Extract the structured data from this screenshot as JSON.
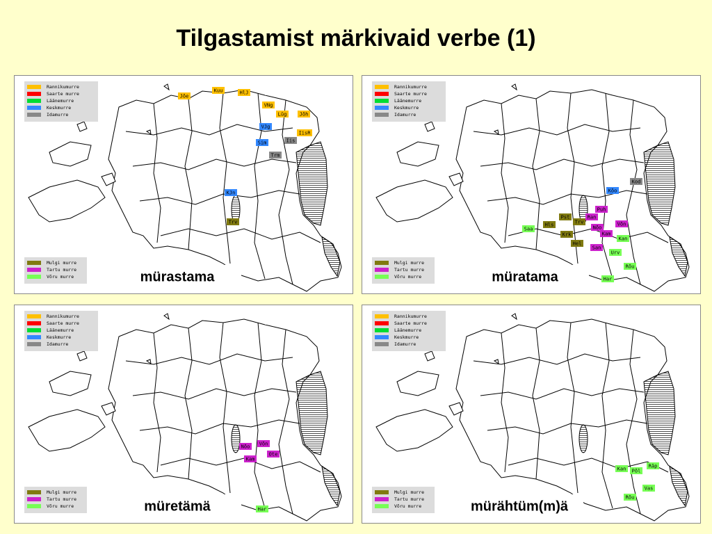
{
  "title": "Tilgastamist märkivaid verbe (1)",
  "legend_top": [
    {
      "name": "Rannikumurre",
      "color": "#ffc000"
    },
    {
      "name": "Saarte murre",
      "color": "#ff0000"
    },
    {
      "name": "Läänemurre",
      "color": "#00dd33"
    },
    {
      "name": "Keskmurre",
      "color": "#3388ff"
    },
    {
      "name": "Idamurre",
      "color": "#888888"
    }
  ],
  "legend_bottom": [
    {
      "name": "Mulgi murre",
      "color": "#807a10"
    },
    {
      "name": "Tartu murre",
      "color": "#cc22cc"
    },
    {
      "name": "Võru murre",
      "color": "#77ff55"
    }
  ],
  "maps": [
    {
      "word": "mürastama",
      "labels": [
        {
          "text": "Jõe",
          "color": "#ffc000"
        },
        {
          "text": "Kuu",
          "color": "#ffc000"
        },
        {
          "text": "HlJ",
          "color": "#ffc000"
        },
        {
          "text": "VNg",
          "color": "#ffc000"
        },
        {
          "text": "Lüg",
          "color": "#ffc000"
        },
        {
          "text": "Jõh",
          "color": "#ffc000"
        },
        {
          "text": "IisR",
          "color": "#ffc000"
        },
        {
          "text": "VJg",
          "color": "#3388ff"
        },
        {
          "text": "Sim",
          "color": "#3388ff"
        },
        {
          "text": "Iis",
          "color": "#888888"
        },
        {
          "text": "Trm",
          "color": "#888888"
        },
        {
          "text": "KJn",
          "color": "#3388ff"
        },
        {
          "text": "Trv",
          "color": "#807a10"
        }
      ]
    },
    {
      "word": "müratama",
      "labels": [
        {
          "text": "Kod",
          "color": "#888888"
        },
        {
          "text": "Kõo",
          "color": "#3388ff"
        },
        {
          "text": "Pst",
          "color": "#807a10"
        },
        {
          "text": "Hls",
          "color": "#807a10"
        },
        {
          "text": "Trv",
          "color": "#807a10"
        },
        {
          "text": "Saa",
          "color": "#77ff55"
        },
        {
          "text": "Krk",
          "color": "#807a10"
        },
        {
          "text": "Hel",
          "color": "#807a10"
        },
        {
          "text": "Puh",
          "color": "#cc22cc"
        },
        {
          "text": "Ran",
          "color": "#cc22cc"
        },
        {
          "text": "Nõo",
          "color": "#cc22cc"
        },
        {
          "text": "Kam",
          "color": "#cc22cc"
        },
        {
          "text": "Võn",
          "color": "#cc22cc"
        },
        {
          "text": "San",
          "color": "#cc22cc"
        },
        {
          "text": "Kan",
          "color": "#77ff55"
        },
        {
          "text": "Urv",
          "color": "#77ff55"
        },
        {
          "text": "Rõu",
          "color": "#77ff55"
        },
        {
          "text": "Har",
          "color": "#77ff55"
        }
      ]
    },
    {
      "word": "müretämä",
      "labels": [
        {
          "text": "Nõo",
          "color": "#cc22cc"
        },
        {
          "text": "Võn",
          "color": "#cc22cc"
        },
        {
          "text": "Kam",
          "color": "#cc22cc"
        },
        {
          "text": "Ote",
          "color": "#cc22cc"
        },
        {
          "text": "Har",
          "color": "#77ff55"
        }
      ]
    },
    {
      "word": "mürähtüm(m)ä",
      "labels": [
        {
          "text": "Kan",
          "color": "#77ff55"
        },
        {
          "text": "Põl",
          "color": "#77ff55"
        },
        {
          "text": "Räp",
          "color": "#77ff55"
        },
        {
          "text": "Vas",
          "color": "#77ff55"
        },
        {
          "text": "Rõu",
          "color": "#77ff55"
        }
      ]
    }
  ]
}
